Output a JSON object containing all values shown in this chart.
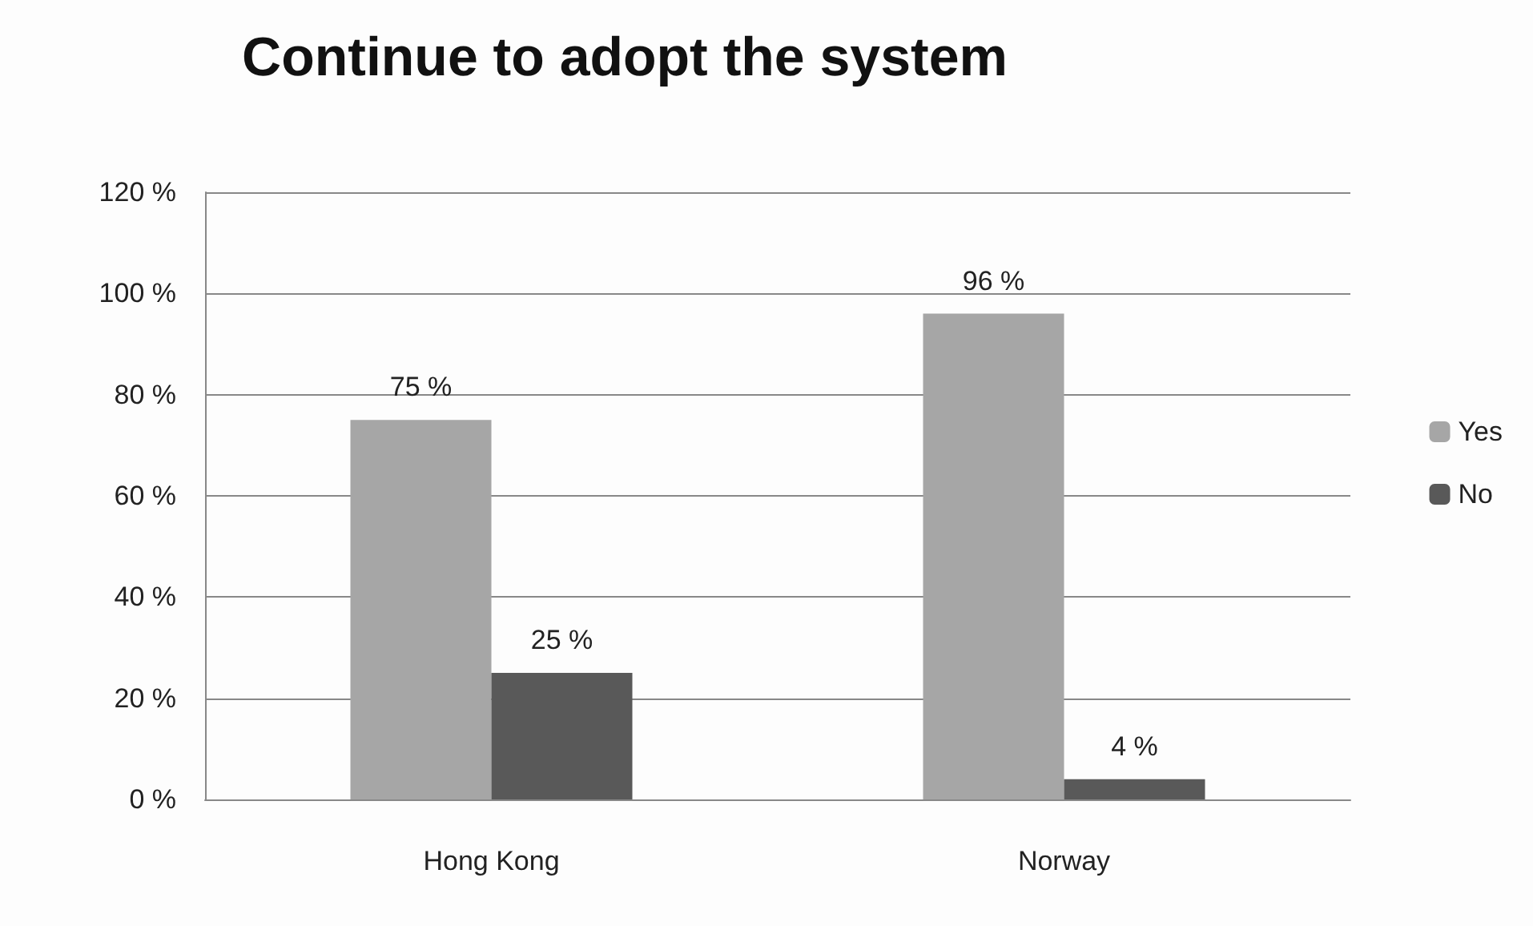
{
  "chart_data": {
    "type": "bar",
    "title": "Continue to adopt the system",
    "categories": [
      "Hong Kong",
      "Norway"
    ],
    "series": [
      {
        "name": "Yes",
        "color": "#a6a6a6",
        "values": [
          75,
          96
        ],
        "value_labels": [
          "75 %",
          "96 %"
        ]
      },
      {
        "name": "No",
        "color": "#595959",
        "values": [
          25,
          4
        ],
        "value_labels": [
          "25 %",
          "4 %"
        ]
      }
    ],
    "ylim": [
      0,
      120
    ],
    "yticks": [
      {
        "value": 0,
        "label": "0 %"
      },
      {
        "value": 20,
        "label": "20 %"
      },
      {
        "value": 40,
        "label": "40 %"
      },
      {
        "value": 60,
        "label": "60 %"
      },
      {
        "value": 80,
        "label": "80 %"
      },
      {
        "value": 100,
        "label": "100 %"
      },
      {
        "value": 120,
        "label": "120 %"
      }
    ],
    "grid": "y",
    "legend": "right"
  }
}
